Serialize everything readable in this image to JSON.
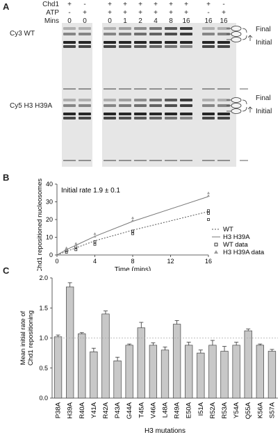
{
  "panel_a": {
    "letter": "A",
    "rows": [
      {
        "label": "Chd1",
        "values": [
          "+",
          "-",
          "+",
          "+",
          "+",
          "+",
          "+",
          "+",
          "+",
          "-"
        ]
      },
      {
        "label": "ATP",
        "values": [
          "-",
          "+",
          "+",
          "+",
          "+",
          "+",
          "+",
          "+",
          "-",
          "+"
        ]
      },
      {
        "label": "Mins",
        "values": [
          "0",
          "0",
          "0",
          "1",
          "2",
          "4",
          "8",
          "16",
          "16",
          "16"
        ]
      }
    ],
    "gels": [
      {
        "label": "Cy3 WT",
        "final_label": "Final",
        "initial_label": "Initial"
      },
      {
        "label": "Cy5 H3 H39A",
        "final_label": "Final",
        "initial_label": "Initial"
      }
    ]
  },
  "panel_b": {
    "letter": "B",
    "annotation": "Initial rate 1.9 ± 0.1",
    "chart_data": {
      "type": "line",
      "xlabel": "Time (mins)",
      "ylabel": "Chd1 repositioned nucleosomes (%)",
      "xlim": [
        0,
        16
      ],
      "ylim": [
        0,
        40
      ],
      "xticks": [
        0,
        4,
        8,
        12,
        16
      ],
      "yticks": [
        0,
        10,
        20,
        30,
        40
      ],
      "legend_position": "bottom-right",
      "series": [
        {
          "name": "WT",
          "kind": "fit",
          "color": "#555555",
          "dashed": true,
          "x": [
            0,
            1,
            2,
            4,
            8,
            16
          ],
          "y": [
            0,
            2.0,
            4.0,
            8.0,
            14.0,
            24.5
          ]
        },
        {
          "name": "H3 H39A",
          "kind": "fit",
          "color": "#777777",
          "dashed": false,
          "x": [
            0,
            1,
            2,
            4,
            8,
            16
          ],
          "y": [
            0,
            3.0,
            5.5,
            10.5,
            19.0,
            33.0
          ]
        },
        {
          "name": "WT data",
          "kind": "points",
          "marker": "square",
          "color": "#222222",
          "x": [
            1,
            1,
            2,
            2,
            4,
            4,
            8,
            8,
            16,
            16,
            16
          ],
          "y": [
            1.5,
            2.5,
            3.0,
            4.5,
            6.0,
            7.5,
            12.0,
            13.5,
            20.0,
            23.5,
            25.0
          ]
        },
        {
          "name": "H3 H39A data",
          "kind": "points",
          "marker": "triangle",
          "color": "#999999",
          "x": [
            1,
            1,
            2,
            2,
            4,
            4,
            8,
            8,
            16,
            16
          ],
          "y": [
            3.0,
            4.0,
            5.5,
            6.5,
            10.5,
            12.0,
            19.5,
            21.0,
            33.5,
            35.0
          ]
        }
      ]
    }
  },
  "panel_c": {
    "letter": "C",
    "chart_data": {
      "type": "bar",
      "xlabel": "H3 mutations",
      "ylabel": "Mean initial rate of Chd1 repositioning",
      "ylim": [
        0,
        2.0
      ],
      "yticks": [
        0,
        0.5,
        1.0,
        1.5,
        2.0
      ],
      "reference_line": 1.0,
      "categories": [
        "P38A",
        "H39A",
        "R40A",
        "Y41A",
        "R42A",
        "P43A",
        "G44A",
        "T45A",
        "V46A",
        "L48A",
        "R49A",
        "E50A",
        "I51A",
        "R52A",
        "R53A",
        "Y54A",
        "Q55A",
        "K56A",
        "S57A"
      ],
      "values": [
        1.02,
        1.85,
        1.07,
        0.77,
        1.4,
        0.62,
        0.88,
        1.17,
        0.88,
        0.8,
        1.23,
        0.88,
        0.75,
        0.88,
        0.78,
        0.88,
        1.12,
        0.88,
        0.78
      ],
      "errors": [
        0.03,
        0.07,
        0.02,
        0.06,
        0.05,
        0.06,
        0.02,
        0.09,
        0.04,
        0.05,
        0.06,
        0.05,
        0.05,
        0.08,
        0.08,
        0.05,
        0.03,
        0.02,
        0.03
      ],
      "bar_color": "#c8c8c8"
    }
  }
}
